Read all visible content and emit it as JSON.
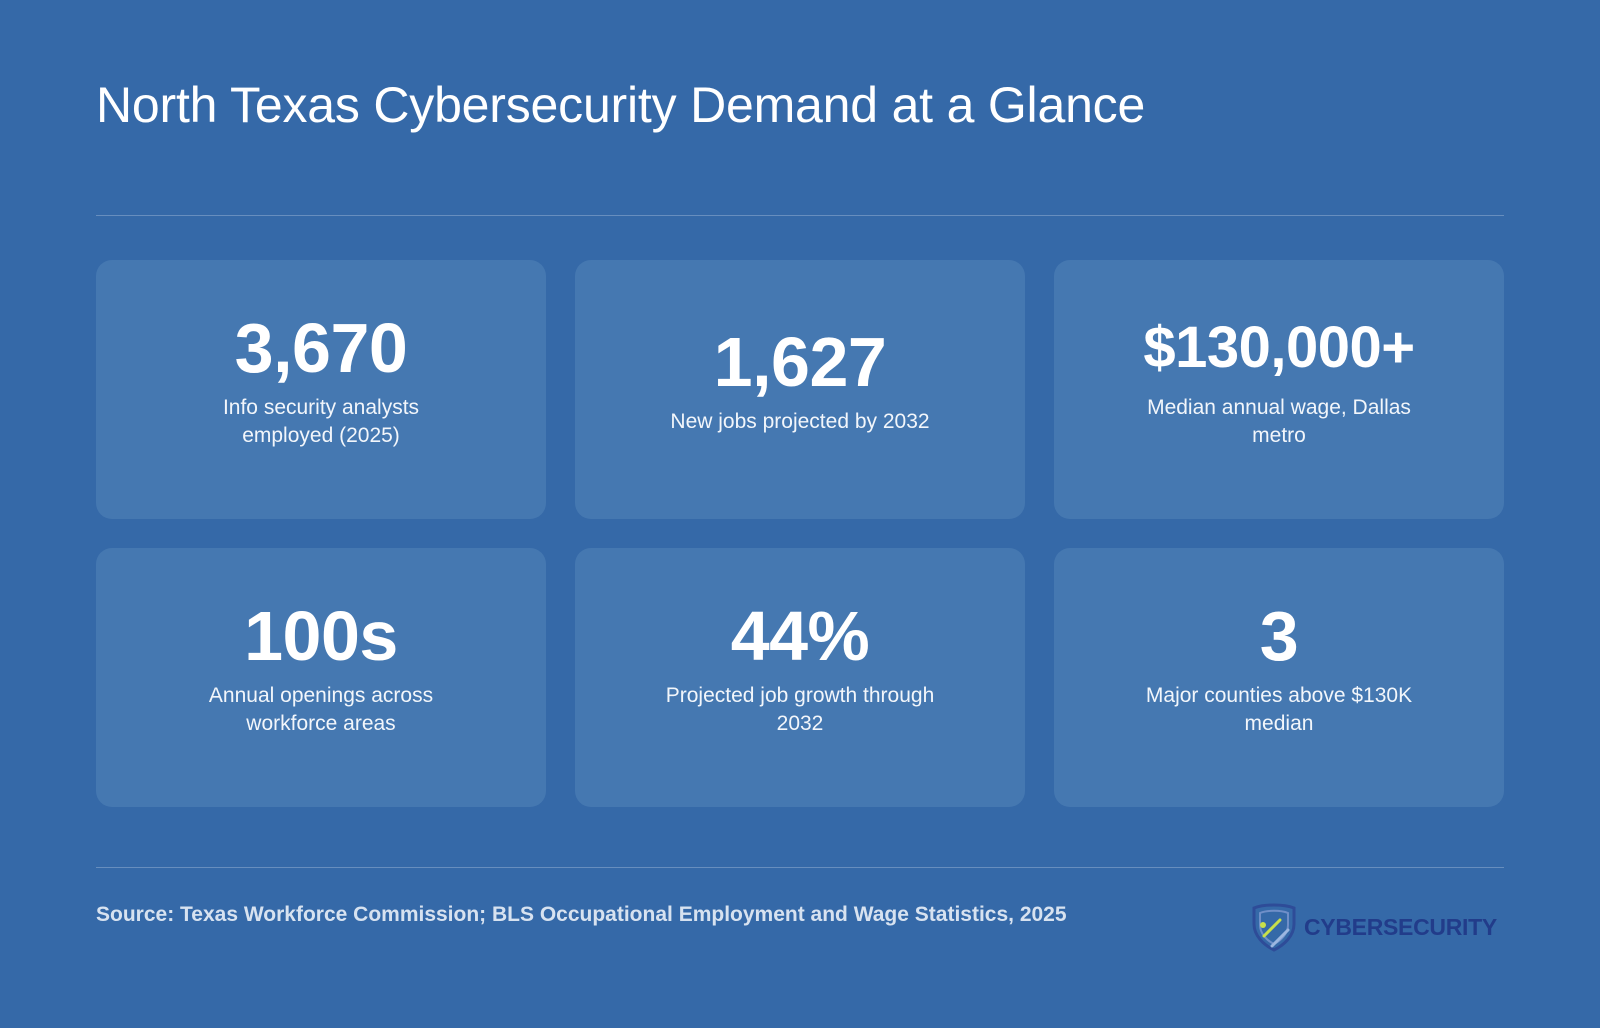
{
  "title": "North Texas Cybersecurity Demand at a Glance",
  "stats": [
    {
      "value": "3,670",
      "label": "Info security analysts employed (2025)"
    },
    {
      "value": "1,627",
      "label": "New jobs projected by 2032"
    },
    {
      "value": "$130,000+",
      "label": "Median annual wage, Dallas metro"
    },
    {
      "value": "100s",
      "label": "Annual openings across workforce areas"
    },
    {
      "value": "44%",
      "label": "Projected job growth through 2032"
    },
    {
      "value": "3",
      "label": "Major counties above $130K median"
    }
  ],
  "source": "Source: Texas Workforce Commission; BLS Occupational Employment and Wage Statistics, 2025",
  "logo": {
    "text": "CYBERSECURITY",
    "icon": "shield-icon"
  },
  "colors": {
    "background": "#3569a8",
    "card": "#4578b1",
    "logo_text": "#223c8a",
    "logo_accent": "#c8e04a"
  }
}
